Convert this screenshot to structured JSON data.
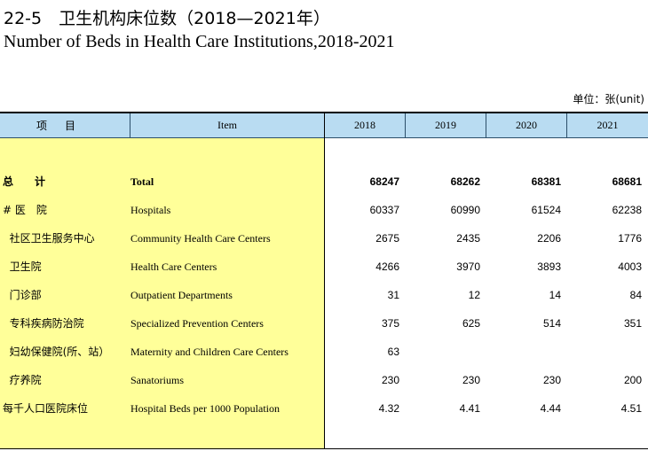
{
  "title_cn": "22-5　卫生机构床位数（2018—2021年）",
  "title_en": "Number of  Beds in Health Care Institutions,2018-2021",
  "unit": "单位：张(unit)",
  "header": {
    "item_cn": "项目",
    "item_en": "Item",
    "years": [
      "2018",
      "2019",
      "2020",
      "2021"
    ]
  },
  "rows": [
    {
      "cn": "总　　计",
      "en": "Total",
      "values": [
        "68247",
        "68262",
        "68381",
        "68681"
      ],
      "bold": true
    },
    {
      "cn": "# 医　院",
      "en": "Hospitals",
      "values": [
        "60337",
        "60990",
        "61524",
        "62238"
      ]
    },
    {
      "cn": "  社区卫生服务中心",
      "en": "Community Health Care Centers",
      "values": [
        "2675",
        "2435",
        "2206",
        "1776"
      ]
    },
    {
      "cn": "  卫生院",
      "en": "Health Care Centers",
      "values": [
        "4266",
        "3970",
        "3893",
        "4003"
      ]
    },
    {
      "cn": "  门诊部",
      "en": "Outpatient Departments",
      "values": [
        "31",
        "12",
        "14",
        "84"
      ]
    },
    {
      "cn": "  专科疾病防治院",
      "en": "Specialized Prevention Centers",
      "values": [
        "375",
        "625",
        "514",
        "351"
      ]
    },
    {
      "cn": "  妇幼保健院(所、站）",
      "en": "Maternity and Children Care Centers",
      "values": [
        "63",
        "",
        "",
        ""
      ]
    },
    {
      "cn": "  疗养院",
      "en": "Sanatoriums",
      "values": [
        "230",
        "230",
        "230",
        "200"
      ]
    },
    {
      "cn": "每千人口医院床位",
      "en": "Hospital Beds per 1000 Population",
      "values": [
        "4.32",
        "4.41",
        "4.44",
        "4.51"
      ]
    }
  ]
}
